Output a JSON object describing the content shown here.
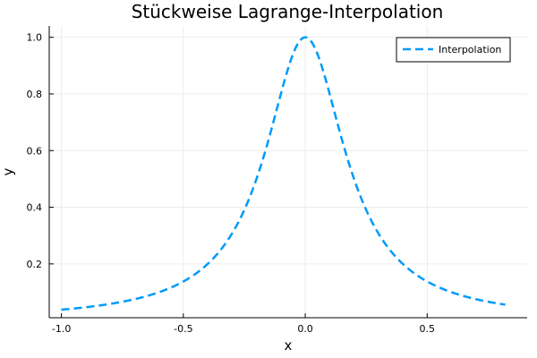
{
  "chart_data": {
    "type": "line",
    "title": "Stückweise Lagrange-Interpolation",
    "xlabel": "x",
    "ylabel": "y",
    "xlim": [
      -1.05,
      0.91
    ],
    "ylim": [
      0.01,
      1.04
    ],
    "xticks": [
      -1.0,
      -0.5,
      0.0,
      0.5
    ],
    "xtick_labels": [
      "-1.0",
      "-0.5",
      "0.0",
      "0.5"
    ],
    "yticks": [
      0.2,
      0.4,
      0.6,
      0.8,
      1.0
    ],
    "ytick_labels": [
      "0.2",
      "0.4",
      "0.6",
      "0.8",
      "1.0"
    ],
    "grid": true,
    "legend": "top-right",
    "series": [
      {
        "name": "Interpolation",
        "color": "#009AFA",
        "style": "dashed",
        "function": "1/(1+25x^2)",
        "x_start": -1.0,
        "x_end": 0.82
      }
    ]
  }
}
